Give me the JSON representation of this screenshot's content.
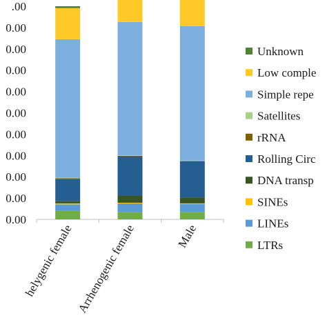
{
  "chart_data": {
    "type": "bar",
    "stacked": true,
    "normalized": true,
    "categories": [
      "Thelygenic female",
      "Arrhenogenic female",
      "Male"
    ],
    "category_labels_visible": [
      "helygenic female",
      "Arrhenogenic female",
      "Male"
    ],
    "y_tick_labels_visible": [
      ".00",
      "0.00",
      "0.00",
      "0.00",
      "0.00",
      "0.00",
      "0.00",
      "0.00",
      "0.00",
      "0.00",
      "0.00"
    ],
    "ylim": [
      0,
      100
    ],
    "grid": false,
    "legend_position": "right",
    "series": [
      {
        "name": "LTRs",
        "color": "#70ad47",
        "values": [
          4.0,
          3.5,
          3.3
        ]
      },
      {
        "name": "LINEs",
        "color": "#5b9bd5",
        "values": [
          3.0,
          4.0,
          3.9
        ]
      },
      {
        "name": "SINEs",
        "color": "#ffc000",
        "values": [
          0.5,
          0.3,
          0.3
        ]
      },
      {
        "name": "DNA transposons",
        "color": "#375623",
        "values": [
          1.0,
          3.5,
          2.8
        ]
      },
      {
        "name": "Rolling Circle",
        "color": "#255e91",
        "values": [
          10.5,
          18.3,
          16.9
        ]
      },
      {
        "name": "rRNA",
        "color": "#7f6000",
        "values": [
          0.3,
          0.2,
          0.2
        ]
      },
      {
        "name": "Satellites",
        "color": "#a9d18e",
        "values": [
          0.2,
          0.2,
          0.2
        ]
      },
      {
        "name": "Simple repeats",
        "color": "#7cafdd",
        "values": [
          65.0,
          62.6,
          63.1
        ]
      },
      {
        "name": "Low complexity",
        "color": "#ffca28",
        "values": [
          14.6,
          13.4,
          14.3
        ]
      },
      {
        "name": "Unknown",
        "color": "#548235",
        "values": [
          0.9,
          1.3,
          0.9
        ]
      }
    ],
    "legend_labels_visible": [
      "Unknown",
      "Low comple",
      "Simple repe",
      "Satellites",
      "rRNA",
      "Rolling Circ",
      "DNA transp",
      "SINEs",
      "LINEs",
      "LTRs"
    ]
  }
}
